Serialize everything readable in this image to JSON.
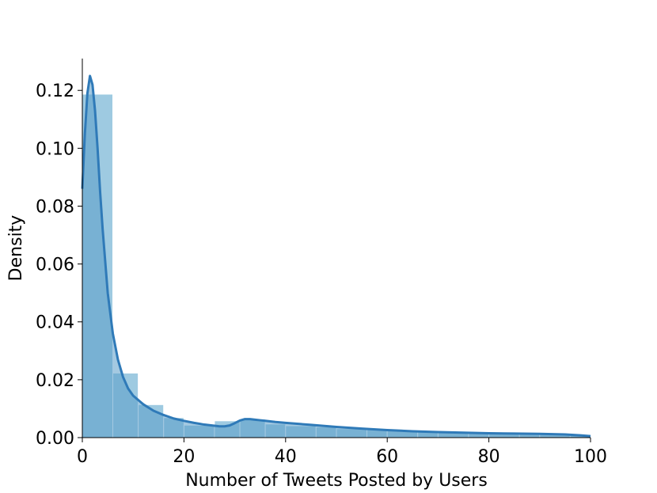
{
  "chart_data": {
    "type": "bar",
    "title": "",
    "xlabel": "Number of Tweets Posted by Users",
    "ylabel": "Density",
    "xlim": [
      0,
      100
    ],
    "ylim": [
      0,
      0.131
    ],
    "grid": false,
    "x_ticks": [
      "0",
      "20",
      "40",
      "60",
      "80",
      "100"
    ],
    "x_tick_values": [
      0,
      20,
      40,
      60,
      80,
      100
    ],
    "y_ticks": [
      "0.00",
      "0.02",
      "0.04",
      "0.06",
      "0.08",
      "0.10",
      "0.12"
    ],
    "y_tick_values": [
      0,
      0.02,
      0.04,
      0.06,
      0.08,
      0.1,
      0.12
    ],
    "histogram": {
      "bin_edges": [
        0,
        6,
        11,
        16,
        20,
        26,
        31,
        36,
        40,
        46,
        50,
        56,
        60,
        66,
        70,
        76,
        80,
        86,
        90,
        96,
        100
      ],
      "densities": [
        0.1187,
        0.0223,
        0.0114,
        0.0069,
        0.0043,
        0.0058,
        0.0064,
        0.0047,
        0.0041,
        0.0037,
        0.0031,
        0.0028,
        0.0024,
        0.0021,
        0.0019,
        0.0017,
        0.0015,
        0.0014,
        0.0012,
        0.001
      ]
    },
    "kde": {
      "x": [
        0,
        0.5,
        1,
        1.5,
        2,
        2.5,
        3,
        3.5,
        4,
        5,
        6,
        7,
        8,
        9,
        10,
        12,
        14,
        16,
        18,
        20,
        22,
        24,
        26,
        27,
        28,
        29,
        30,
        31,
        32,
        33,
        34,
        35,
        36,
        38,
        40,
        45,
        50,
        55,
        60,
        65,
        70,
        75,
        80,
        85,
        90,
        95,
        98,
        100
      ],
      "y": [
        0.086,
        0.105,
        0.119,
        0.125,
        0.122,
        0.113,
        0.1,
        0.085,
        0.072,
        0.05,
        0.036,
        0.027,
        0.021,
        0.017,
        0.0145,
        0.0115,
        0.0093,
        0.0078,
        0.0066,
        0.0058,
        0.0051,
        0.0045,
        0.0041,
        0.0039,
        0.0039,
        0.0042,
        0.005,
        0.0059,
        0.0064,
        0.0064,
        0.0062,
        0.006,
        0.0058,
        0.0054,
        0.0051,
        0.0044,
        0.0037,
        0.0031,
        0.0026,
        0.0022,
        0.0019,
        0.0017,
        0.0015,
        0.0014,
        0.0013,
        0.0011,
        0.0008,
        0.0005
      ]
    },
    "colors": {
      "hist_fill": "#9ecae1",
      "hist_edge": "#ffffff",
      "kde_line": "#2f7ab8",
      "kde_fill": "#5a9dc8",
      "axis": "#000000"
    }
  }
}
